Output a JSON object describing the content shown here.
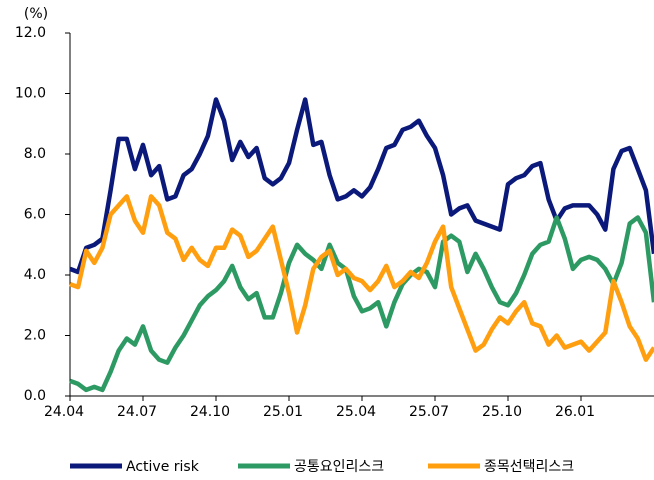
{
  "chart_data": {
    "type": "line",
    "unit_label": "(%)",
    "categories": [
      "24.04",
      null,
      null,
      null,
      null,
      null,
      null,
      null,
      null,
      "24.07",
      null,
      null,
      null,
      null,
      null,
      null,
      null,
      null,
      "24.10",
      null,
      null,
      null,
      null,
      null,
      null,
      null,
      null,
      "25.01",
      null,
      null,
      null,
      null,
      null,
      null,
      null,
      null,
      "25.04",
      null,
      null,
      null,
      null,
      null,
      null,
      null,
      null,
      "25.07",
      null,
      null,
      null,
      null,
      null,
      null,
      null,
      null,
      "25.10",
      null,
      null,
      null,
      null,
      null,
      null,
      null,
      null,
      "26.01",
      null,
      null,
      null,
      null,
      null,
      null,
      null,
      null,
      null
    ],
    "series": [
      {
        "name": "Active risk",
        "color": "#0b1a7a",
        "values": [
          4.2,
          4.1,
          4.9,
          5.0,
          5.2,
          6.8,
          8.5,
          8.5,
          7.5,
          8.3,
          7.3,
          7.6,
          6.5,
          6.6,
          7.3,
          7.5,
          8.0,
          8.6,
          9.8,
          9.1,
          7.8,
          8.4,
          7.9,
          8.2,
          7.2,
          7.0,
          7.2,
          7.7,
          8.8,
          9.8,
          8.3,
          8.4,
          7.3,
          6.5,
          6.6,
          6.8,
          6.6,
          6.9,
          7.5,
          8.2,
          8.3,
          8.8,
          8.9,
          9.1,
          8.6,
          8.2,
          7.3,
          6.0,
          6.2,
          6.3,
          5.8,
          5.7,
          5.6,
          5.5,
          7.0,
          7.2,
          7.3,
          7.6,
          7.7,
          6.5,
          5.8,
          6.2,
          6.3,
          6.3,
          6.3,
          6.0,
          5.5,
          7.5,
          8.1,
          8.2,
          7.5,
          6.8,
          4.7
        ]
      },
      {
        "name": "공통요인리스크",
        "color": "#2e9a63",
        "values": [
          0.5,
          0.4,
          0.2,
          0.3,
          0.2,
          0.8,
          1.5,
          1.9,
          1.7,
          2.3,
          1.5,
          1.2,
          1.1,
          1.6,
          2.0,
          2.5,
          3.0,
          3.3,
          3.5,
          3.8,
          4.3,
          3.6,
          3.2,
          3.4,
          2.6,
          2.6,
          3.4,
          4.4,
          5.0,
          4.7,
          4.5,
          4.2,
          5.0,
          4.4,
          4.2,
          3.3,
          2.8,
          2.9,
          3.1,
          2.3,
          3.1,
          3.7,
          4.0,
          4.2,
          4.1,
          3.6,
          5.1,
          5.3,
          5.1,
          4.1,
          4.7,
          4.2,
          3.6,
          3.1,
          3.0,
          3.4,
          4.0,
          4.7,
          5.0,
          5.1,
          5.9,
          5.2,
          4.2,
          4.5,
          4.6,
          4.5,
          4.2,
          3.7,
          4.4,
          5.7,
          5.9,
          5.4,
          3.1
        ]
      },
      {
        "name": "종목선택리스크",
        "color": "#ff9e0f",
        "values": [
          3.7,
          3.6,
          4.8,
          4.4,
          4.9,
          6.0,
          6.3,
          6.6,
          5.8,
          5.4,
          6.6,
          6.3,
          5.4,
          5.2,
          4.5,
          4.9,
          4.5,
          4.3,
          4.9,
          4.9,
          5.5,
          5.3,
          4.6,
          4.8,
          5.2,
          5.6,
          4.5,
          3.4,
          2.1,
          3.0,
          4.2,
          4.6,
          4.8,
          4.0,
          4.2,
          3.9,
          3.8,
          3.5,
          3.8,
          4.3,
          3.6,
          3.8,
          4.1,
          3.9,
          4.4,
          5.1,
          5.6,
          3.6,
          2.9,
          2.2,
          1.5,
          1.7,
          2.2,
          2.6,
          2.4,
          2.8,
          3.1,
          2.4,
          2.3,
          1.7,
          2.0,
          1.6,
          1.7,
          1.8,
          1.5,
          1.8,
          2.1,
          3.8,
          3.1,
          2.3,
          1.9,
          1.2,
          1.6
        ]
      }
    ],
    "ylim": [
      0,
      12
    ],
    "yticks": [
      {
        "value": 0,
        "label": "0.0"
      },
      {
        "value": 2,
        "label": "2.0"
      },
      {
        "value": 4,
        "label": "4.0"
      },
      {
        "value": 6,
        "label": "6.0"
      },
      {
        "value": 8,
        "label": "8.0"
      },
      {
        "value": 10,
        "label": "10.0"
      },
      {
        "value": 12,
        "label": "12.0"
      }
    ],
    "grid": false,
    "legend": "bottom"
  }
}
